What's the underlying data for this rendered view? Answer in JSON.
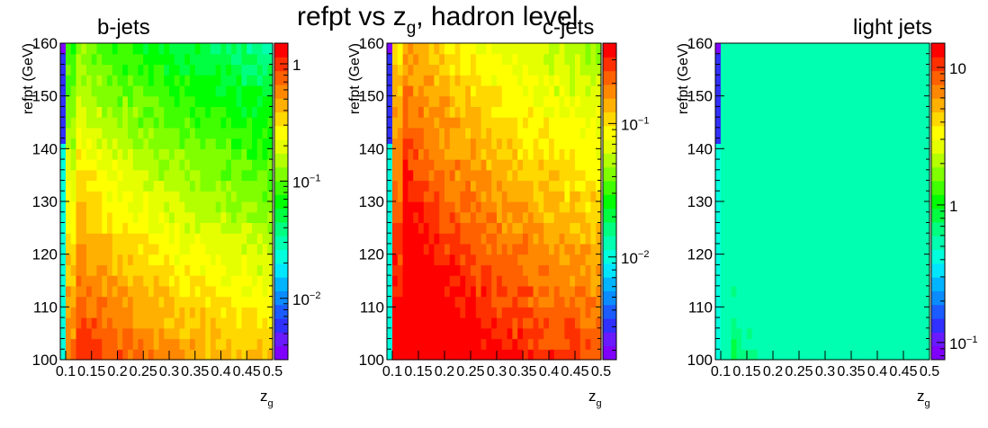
{
  "title": {
    "prefix": "refpt vs z",
    "subscript": "g",
    "suffix": ", hadron level"
  },
  "chart_data": [
    {
      "type": "heatmap",
      "title": "b-jets",
      "xlabel": "z",
      "xlabel_sub": "g",
      "ylabel": "refpt (GeV)",
      "xlim": [
        0.1,
        0.5
      ],
      "ylim": [
        100,
        160
      ],
      "x_ticks": [
        "0.1",
        "0.15",
        "0.2",
        "0.25",
        "0.3",
        "0.35",
        "0.4",
        "0.45",
        "0.5"
      ],
      "y_ticks": [
        "100",
        "110",
        "120",
        "130",
        "140",
        "150",
        "160"
      ],
      "z_scale": "log",
      "z_range": [
        0.003,
        1.5
      ],
      "z_ticks": [
        {
          "value": 1,
          "label": "1"
        },
        {
          "value": 0.1,
          "label": "10",
          "exp": "−1"
        },
        {
          "value": 0.01,
          "label": "10",
          "exp": "−2"
        }
      ],
      "z_fn": {
        "A": 1.48,
        "B": 0.039,
        "C": 0.85,
        "D": 0.02
      }
    },
    {
      "type": "heatmap",
      "title": "c-jets",
      "xlabel": "z",
      "xlabel_sub": "g",
      "ylabel": "refpt (GeV)",
      "xlim": [
        0.1,
        0.5
      ],
      "ylim": [
        100,
        160
      ],
      "x_ticks": [
        "0.1",
        "0.15",
        "0.2",
        "0.25",
        "0.3",
        "0.35",
        "0.4",
        "0.45",
        "0.5"
      ],
      "y_ticks": [
        "100",
        "110",
        "120",
        "130",
        "140",
        "150",
        "160"
      ],
      "z_scale": "log",
      "z_range": [
        0.0017,
        0.4
      ],
      "z_ticks": [
        {
          "value": 0.1,
          "label": "10",
          "exp": "−1"
        },
        {
          "value": 0.01,
          "label": "10",
          "exp": "−2"
        }
      ],
      "z_fn": {
        "A": 0.93,
        "B": 0.027,
        "C": 0.85,
        "D": 0.03
      }
    },
    {
      "type": "heatmap",
      "title": "light jets",
      "xlabel": "z",
      "xlabel_sub": "g",
      "ylabel": "refpt (GeV)",
      "xlim": [
        0.1,
        0.5
      ],
      "ylim": [
        100,
        160
      ],
      "x_ticks": [
        "0.1",
        "0.15",
        "0.2",
        "0.25",
        "0.3",
        "0.35",
        "0.4",
        "0.45",
        "0.5"
      ],
      "y_ticks": [
        "100",
        "110",
        "120",
        "130",
        "140",
        "150",
        "160"
      ],
      "z_scale": "log",
      "z_range": [
        0.075,
        15
      ],
      "z_ticks": [
        {
          "value": 10,
          "label": "10"
        },
        {
          "value": 1,
          "label": "1"
        },
        {
          "value": 0.1,
          "label": "10",
          "exp": "−1"
        }
      ],
      "z_fn": {
        "A": 1.04,
        "B": 0.03,
        "C": 1.25,
        "D": 0.032
      }
    }
  ],
  "palette": [
    "#8000ff",
    "#6a1aff",
    "#3030ff",
    "#1a5cff",
    "#0a8cff",
    "#00b4ff",
    "#00e6ff",
    "#00ffdc",
    "#00ffb0",
    "#00ff80",
    "#00ff40",
    "#00ff00",
    "#40ff00",
    "#80ff00",
    "#b4ff00",
    "#e6ff00",
    "#ffff00",
    "#ffd800",
    "#ffb000",
    "#ff8800",
    "#ff6000",
    "#ff3000",
    "#ff0000"
  ]
}
